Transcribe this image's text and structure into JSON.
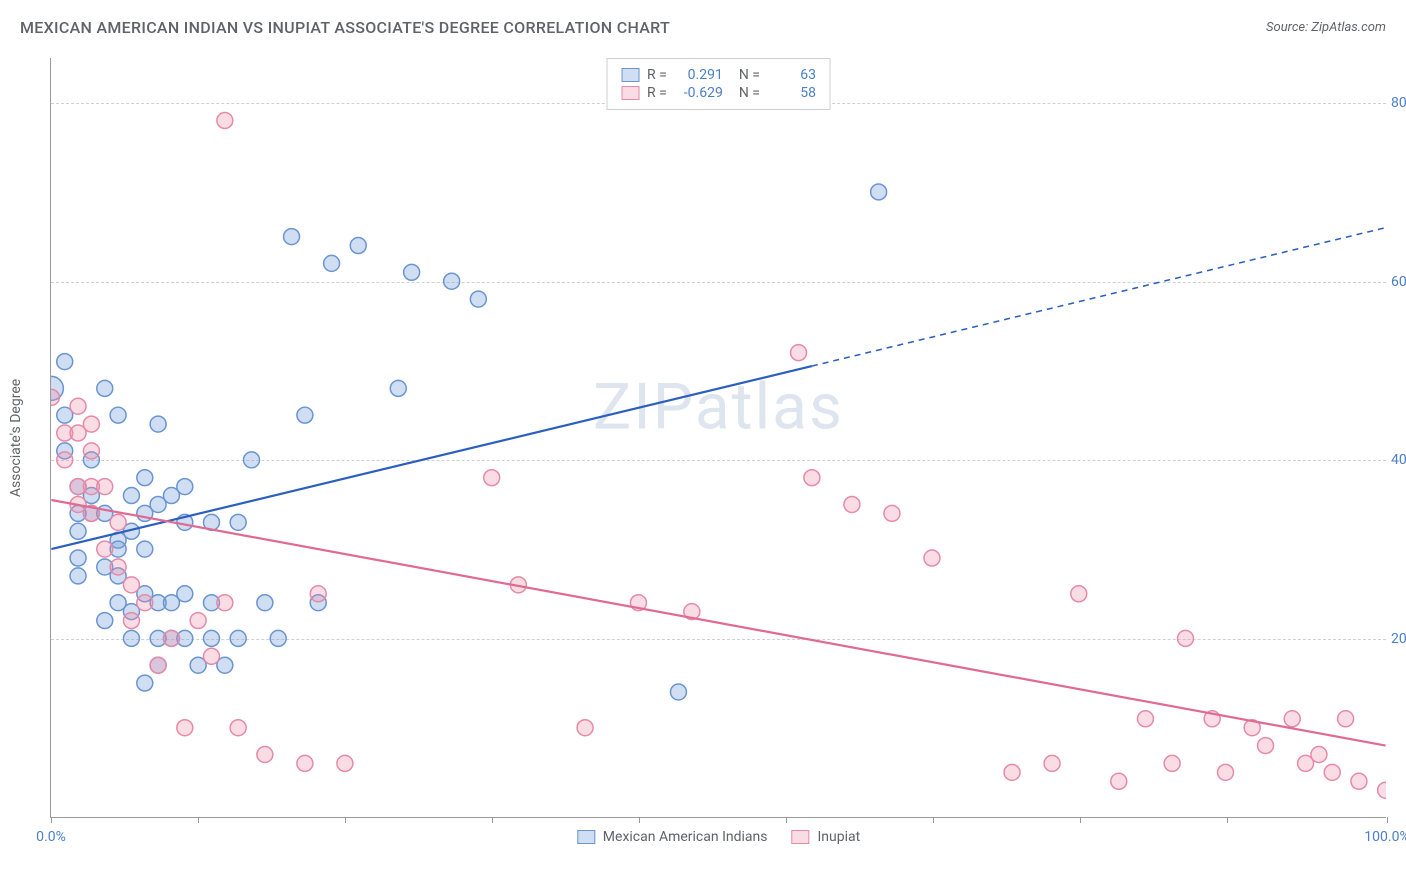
{
  "title": "MEXICAN AMERICAN INDIAN VS INUPIAT ASSOCIATE'S DEGREE CORRELATION CHART",
  "source_label": "Source: ZipAtlas.com",
  "watermark": "ZIPatlas",
  "y_axis_title": "Associate's Degree",
  "chart": {
    "type": "scatter",
    "xlim": [
      0,
      100
    ],
    "ylim": [
      0,
      85
    ],
    "x_ticks_major": [
      0,
      100
    ],
    "x_ticks_minor": [
      11,
      22,
      33,
      44,
      55,
      66,
      77,
      88
    ],
    "x_tick_labels": {
      "0": "0.0%",
      "100": "100.0%"
    },
    "y_ticks": [
      20,
      40,
      60,
      80
    ],
    "y_tick_labels": {
      "20": "20.0%",
      "40": "40.0%",
      "60": "60.0%",
      "80": "80.0%"
    },
    "grid_color": "#d0d0d0",
    "axis_color": "#999999",
    "background_color": "#ffffff",
    "tick_label_color": "#4a7ec9",
    "marker_radius": 8,
    "marker_radius_large": 12,
    "marker_stroke_width": 1.5,
    "line_width": 2.2
  },
  "series": [
    {
      "key": "mexican_american_indians",
      "label": "Mexican American Indians",
      "fill_color": "rgba(120,160,220,0.35)",
      "stroke_color": "#6a95d0",
      "line_color": "#2a5fc0",
      "stats": {
        "R": "0.291",
        "N": "63"
      },
      "trend": {
        "x1": 0,
        "y1": 30,
        "x2_solid": 57,
        "y2_solid": 50.5,
        "x2": 100,
        "y2": 66
      },
      "points": [
        [
          0,
          48,
          "L"
        ],
        [
          1,
          41
        ],
        [
          1,
          45
        ],
        [
          1,
          51
        ],
        [
          2,
          37
        ],
        [
          2,
          34
        ],
        [
          2,
          32
        ],
        [
          2,
          29
        ],
        [
          2,
          27
        ],
        [
          3,
          40
        ],
        [
          3,
          36
        ],
        [
          3,
          34
        ],
        [
          4,
          48
        ],
        [
          4,
          34
        ],
        [
          4,
          28
        ],
        [
          4,
          22
        ],
        [
          5,
          45
        ],
        [
          5,
          31
        ],
        [
          5,
          30
        ],
        [
          5,
          27
        ],
        [
          5,
          24
        ],
        [
          6,
          36
        ],
        [
          6,
          32
        ],
        [
          6,
          23
        ],
        [
          6,
          20
        ],
        [
          7,
          38
        ],
        [
          7,
          34
        ],
        [
          7,
          30
        ],
        [
          7,
          25
        ],
        [
          7,
          15
        ],
        [
          8,
          44
        ],
        [
          8,
          35
        ],
        [
          8,
          24
        ],
        [
          8,
          20
        ],
        [
          8,
          17
        ],
        [
          9,
          36
        ],
        [
          9,
          24
        ],
        [
          9,
          20
        ],
        [
          10,
          37
        ],
        [
          10,
          33
        ],
        [
          10,
          25
        ],
        [
          10,
          20
        ],
        [
          11,
          17
        ],
        [
          12,
          33
        ],
        [
          12,
          24
        ],
        [
          12,
          20
        ],
        [
          13,
          17
        ],
        [
          14,
          33
        ],
        [
          14,
          20
        ],
        [
          15,
          40
        ],
        [
          16,
          24
        ],
        [
          17,
          20
        ],
        [
          18,
          65
        ],
        [
          19,
          45
        ],
        [
          20,
          24
        ],
        [
          21,
          62
        ],
        [
          23,
          64
        ],
        [
          26,
          48
        ],
        [
          27,
          61
        ],
        [
          30,
          60
        ],
        [
          32,
          58
        ],
        [
          47,
          14
        ],
        [
          62,
          70
        ]
      ]
    },
    {
      "key": "inupiat",
      "label": "Inupiat",
      "fill_color": "rgba(240,140,170,0.30)",
      "stroke_color": "#e58aa8",
      "line_color": "#e06a93",
      "stats": {
        "R": "-0.629",
        "N": "58"
      },
      "trend": {
        "x1": 0,
        "y1": 35.5,
        "x2_solid": 100,
        "y2_solid": 8,
        "x2": 100,
        "y2": 8
      },
      "points": [
        [
          0,
          47
        ],
        [
          1,
          43
        ],
        [
          1,
          40
        ],
        [
          2,
          46
        ],
        [
          2,
          43
        ],
        [
          2,
          37
        ],
        [
          2,
          35
        ],
        [
          3,
          44
        ],
        [
          3,
          41
        ],
        [
          3,
          37
        ],
        [
          3,
          34
        ],
        [
          4,
          30
        ],
        [
          4,
          37
        ],
        [
          5,
          33
        ],
        [
          5,
          28
        ],
        [
          6,
          26
        ],
        [
          6,
          22
        ],
        [
          7,
          24
        ],
        [
          8,
          17
        ],
        [
          9,
          20
        ],
        [
          10,
          10
        ],
        [
          11,
          22
        ],
        [
          12,
          18
        ],
        [
          13,
          78
        ],
        [
          13,
          24
        ],
        [
          14,
          10
        ],
        [
          16,
          7
        ],
        [
          19,
          6
        ],
        [
          20,
          25
        ],
        [
          22,
          6
        ],
        [
          33,
          38
        ],
        [
          35,
          26
        ],
        [
          40,
          10
        ],
        [
          44,
          24
        ],
        [
          48,
          23
        ],
        [
          56,
          52
        ],
        [
          57,
          38
        ],
        [
          60,
          35
        ],
        [
          63,
          34
        ],
        [
          66,
          29
        ],
        [
          72,
          5
        ],
        [
          75,
          6
        ],
        [
          77,
          25
        ],
        [
          80,
          4
        ],
        [
          82,
          11
        ],
        [
          84,
          6
        ],
        [
          85,
          20
        ],
        [
          87,
          11
        ],
        [
          88,
          5
        ],
        [
          90,
          10
        ],
        [
          91,
          8
        ],
        [
          93,
          11
        ],
        [
          94,
          6
        ],
        [
          95,
          7
        ],
        [
          96,
          5
        ],
        [
          97,
          11
        ],
        [
          98,
          4
        ],
        [
          100,
          3
        ]
      ]
    }
  ],
  "legend_top": {
    "r_label": "R =",
    "n_label": "N ="
  }
}
